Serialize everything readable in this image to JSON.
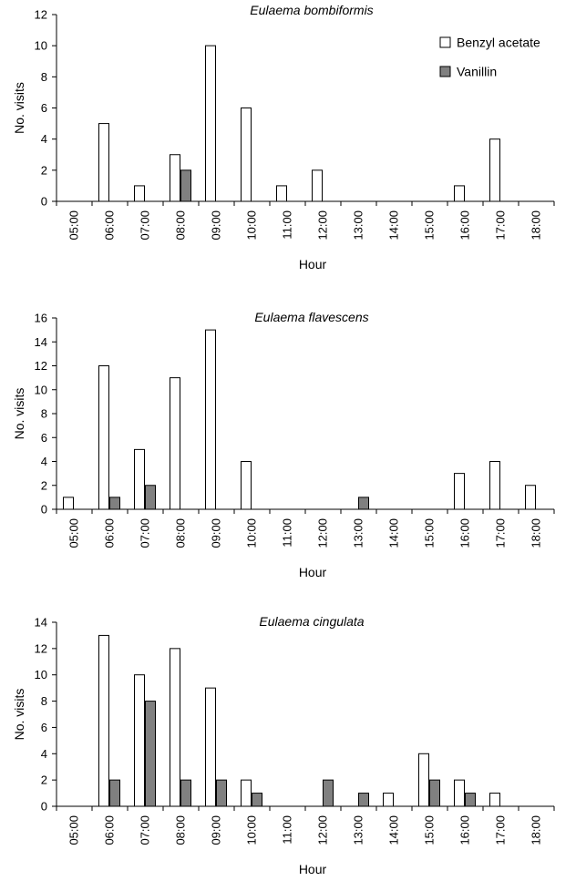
{
  "chart_data": [
    {
      "type": "bar",
      "title": "Eulaema bombiformis",
      "xlabel": "Hour",
      "ylabel": "No. visits",
      "ylim": [
        0,
        12
      ],
      "yticks": [
        0,
        2,
        4,
        6,
        8,
        10,
        12
      ],
      "categories": [
        "05:00",
        "06:00",
        "07:00",
        "08:00",
        "09:00",
        "10:00",
        "11:00",
        "12:00",
        "13:00",
        "14:00",
        "15:00",
        "16:00",
        "17:00",
        "18:00"
      ],
      "series": [
        {
          "name": "Benzyl acetate",
          "color": "#ffffff",
          "values": [
            0,
            5,
            1,
            3,
            10,
            6,
            1,
            2,
            0,
            0,
            0,
            1,
            4,
            0
          ]
        },
        {
          "name": "Vanillin",
          "color": "#808080",
          "values": [
            0,
            0,
            0,
            2,
            0,
            0,
            0,
            0,
            0,
            0,
            0,
            0,
            0,
            0
          ]
        }
      ],
      "legend": "top-right",
      "grid": false
    },
    {
      "type": "bar",
      "title": "Eulaema flavescens",
      "xlabel": "Hour",
      "ylabel": "No. visits",
      "ylim": [
        0,
        16
      ],
      "yticks": [
        0,
        2,
        4,
        6,
        8,
        10,
        12,
        14,
        16
      ],
      "categories": [
        "05:00",
        "06:00",
        "07:00",
        "08:00",
        "09:00",
        "10:00",
        "11:00",
        "12:00",
        "13:00",
        "14:00",
        "15:00",
        "16:00",
        "17:00",
        "18:00"
      ],
      "series": [
        {
          "name": "Benzyl acetate",
          "color": "#ffffff",
          "values": [
            1,
            12,
            5,
            11,
            15,
            4,
            0,
            0,
            0,
            0,
            0,
            3,
            4,
            2
          ]
        },
        {
          "name": "Vanillin",
          "color": "#808080",
          "values": [
            0,
            1,
            2,
            0,
            0,
            0,
            0,
            0,
            1,
            0,
            0,
            0,
            0,
            0
          ]
        }
      ],
      "grid": false
    },
    {
      "type": "bar",
      "title": "Eulaema cingulata",
      "xlabel": "Hour",
      "ylabel": "No. visits",
      "ylim": [
        0,
        14
      ],
      "yticks": [
        0,
        2,
        4,
        6,
        8,
        10,
        12,
        14
      ],
      "categories": [
        "05:00",
        "06:00",
        "07:00",
        "08:00",
        "09:00",
        "10:00",
        "11:00",
        "12:00",
        "13:00",
        "14:00",
        "15:00",
        "16:00",
        "17:00",
        "18:00"
      ],
      "series": [
        {
          "name": "Benzyl acetate",
          "color": "#ffffff",
          "values": [
            0,
            13,
            10,
            12,
            9,
            2,
            0,
            0,
            0,
            1,
            4,
            2,
            1,
            0
          ]
        },
        {
          "name": "Vanillin",
          "color": "#808080",
          "values": [
            0,
            2,
            8,
            2,
            2,
            1,
            0,
            2,
            1,
            0,
            2,
            1,
            0,
            0
          ]
        }
      ],
      "grid": false
    }
  ]
}
